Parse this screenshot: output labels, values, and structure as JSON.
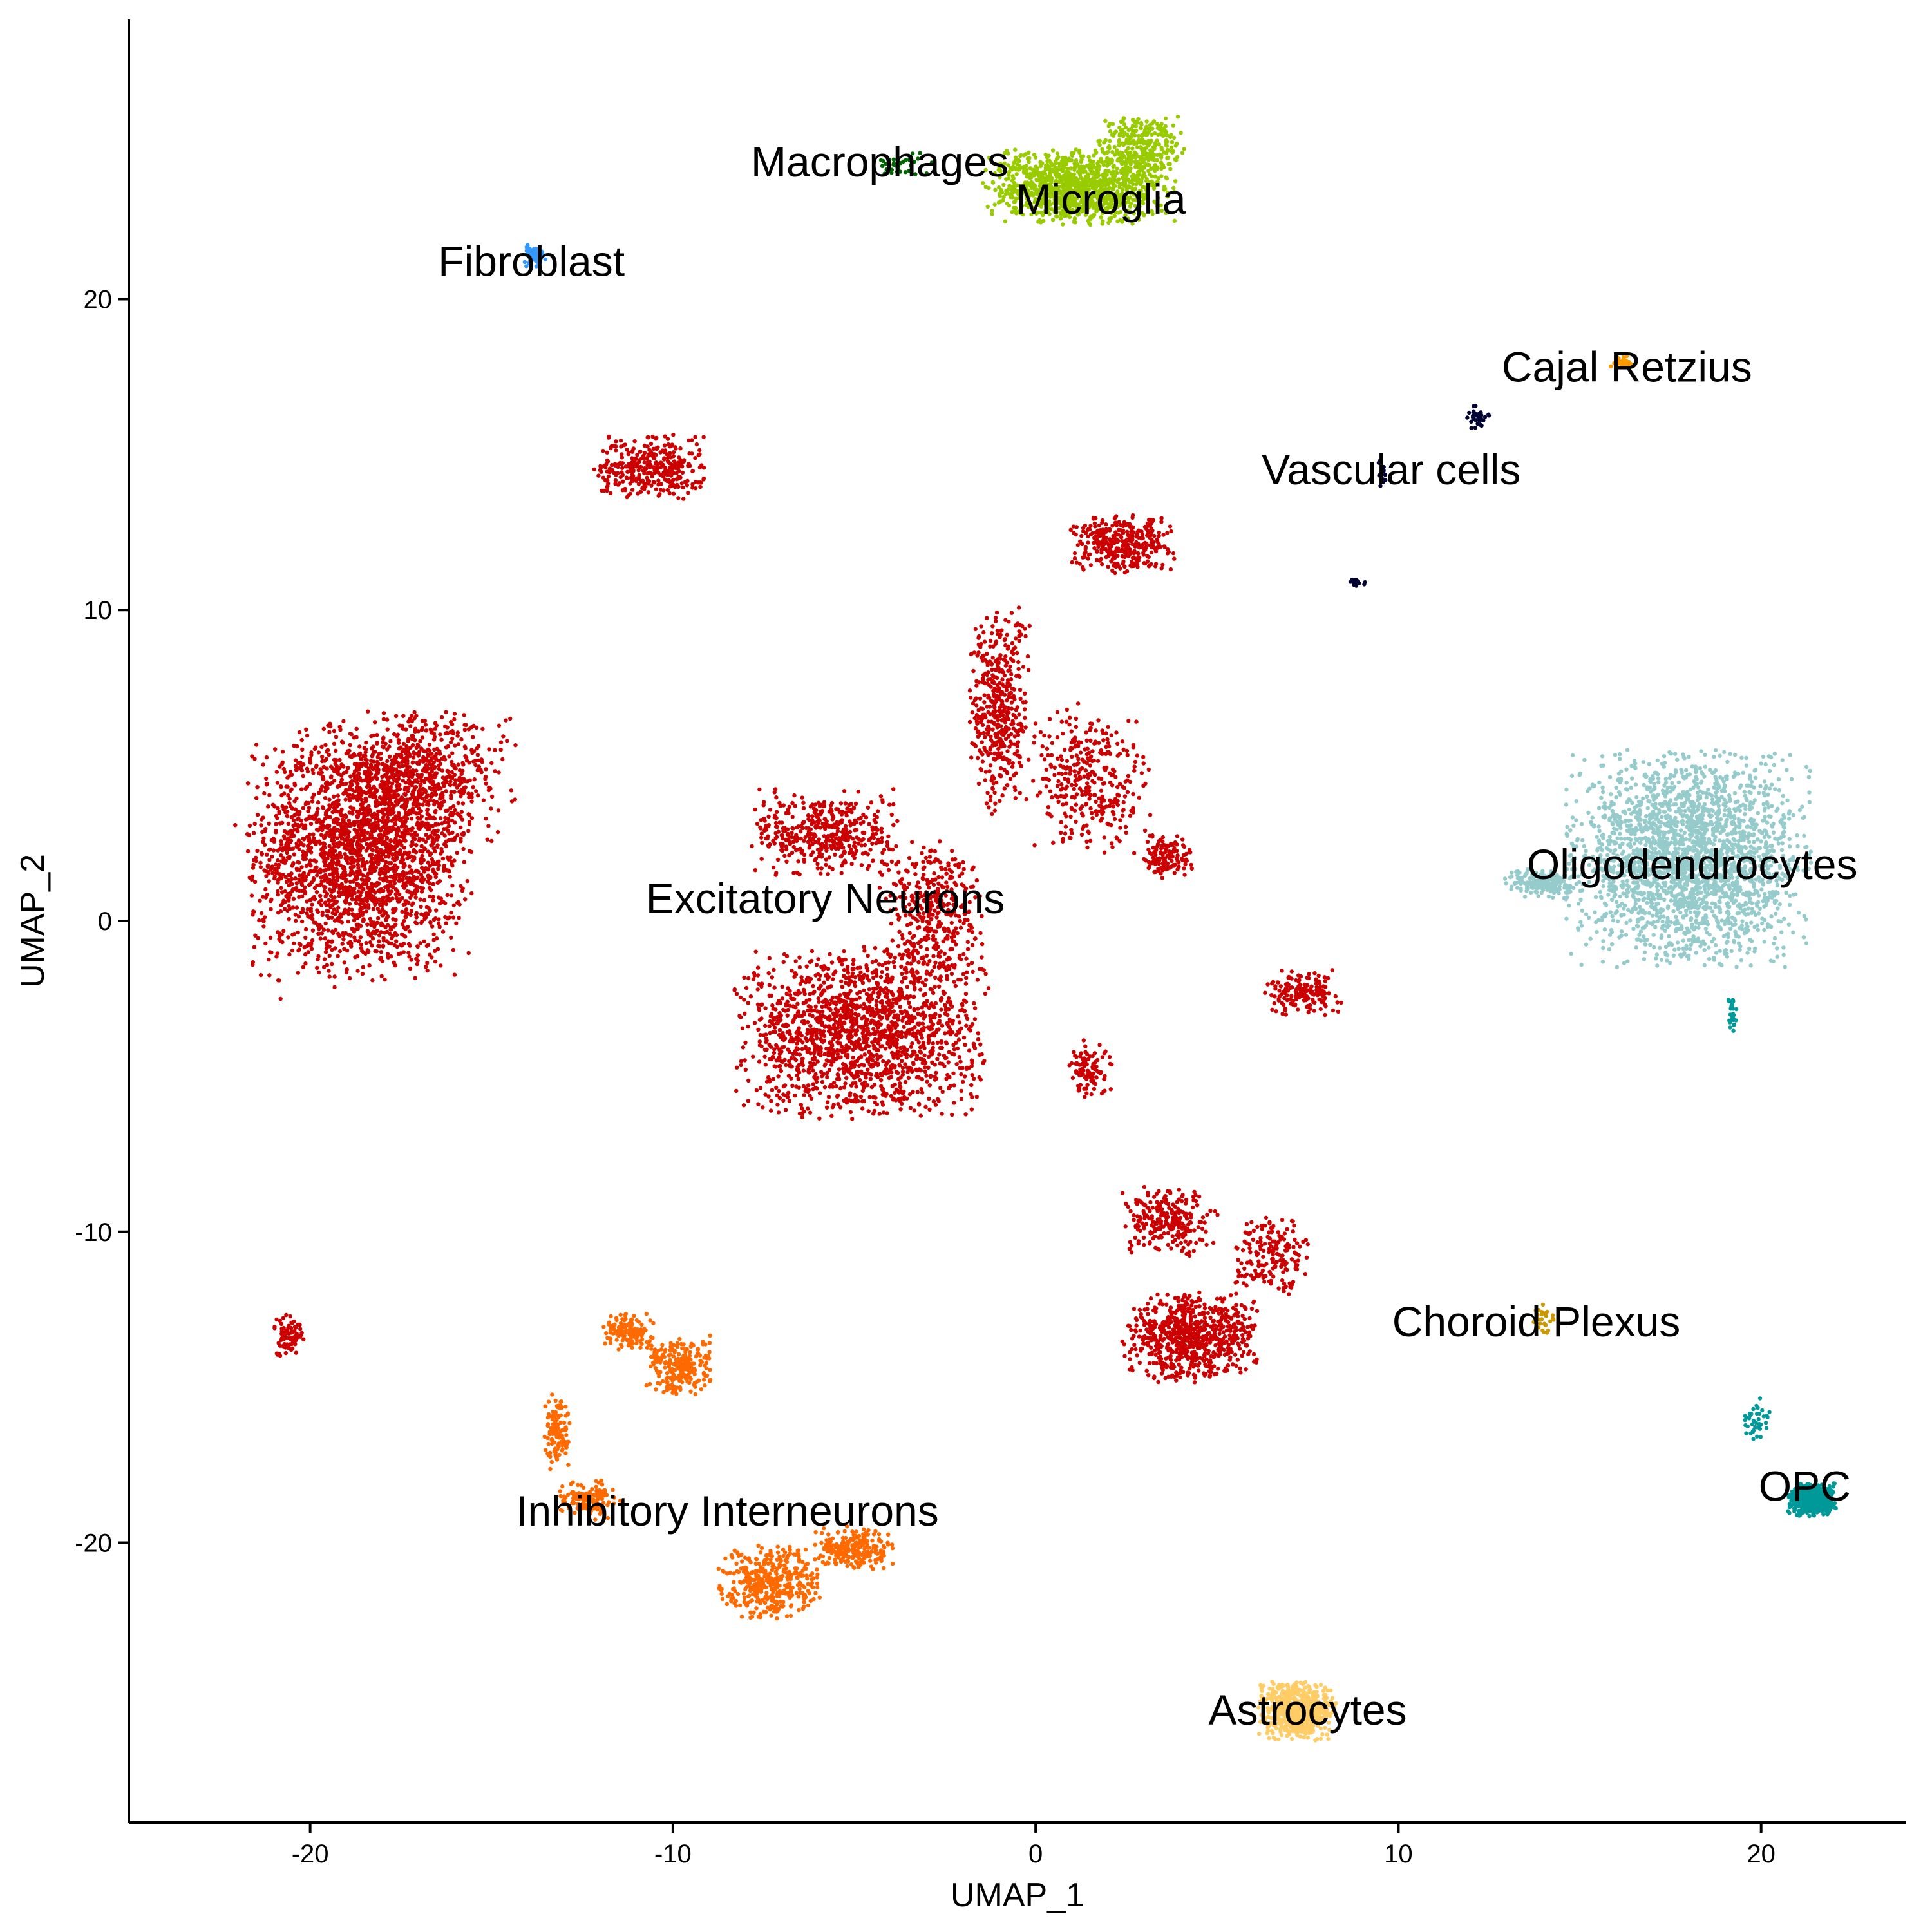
{
  "chart_data": {
    "type": "scatter",
    "title": "",
    "xlabel": "UMAP_1",
    "ylabel": "UMAP_2",
    "xlim": [
      -25,
      24
    ],
    "ylim": [
      -29,
      29
    ],
    "x_ticks": [
      -20,
      -10,
      0,
      10,
      20
    ],
    "y_ticks": [
      -20,
      -10,
      0,
      10,
      20
    ],
    "x_tick_labels": [
      "-20",
      "-10",
      "0",
      "10",
      "20"
    ],
    "y_tick_labels": [
      "-20",
      "-10",
      "0",
      "10",
      "20"
    ],
    "grid": false,
    "legend": "none",
    "clusters": [
      {
        "name": "Excitatory Neurons",
        "color": "#CC0000",
        "label_pos": [
          -5.8,
          0.7
        ],
        "regions": [
          {
            "center": [
              -18.6,
              2.2
            ],
            "spread": [
              2.6,
              3.4
            ],
            "count": 2400
          },
          {
            "center": [
              -17.0,
              4.6
            ],
            "spread": [
              2.2,
              1.8
            ],
            "count": 600
          },
          {
            "center": [
              -4.8,
              -3.6
            ],
            "spread": [
              2.9,
              2.3
            ],
            "count": 1700
          },
          {
            "center": [
              -5.8,
              2.8
            ],
            "spread": [
              1.7,
              1.2
            ],
            "count": 450
          },
          {
            "center": [
              -2.9,
              0.3
            ],
            "spread": [
              1.2,
              2.0
            ],
            "count": 400
          },
          {
            "center": [
              -1.0,
              6.8
            ],
            "spread": [
              0.7,
              2.8
            ],
            "count": 450
          },
          {
            "center": [
              1.5,
              4.5
            ],
            "spread": [
              1.4,
              2.0
            ],
            "count": 350
          },
          {
            "center": [
              2.4,
              12.1
            ],
            "spread": [
              1.2,
              0.8
            ],
            "count": 350
          },
          {
            "center": [
              -10.6,
              14.6
            ],
            "spread": [
              1.3,
              0.9
            ],
            "count": 350
          },
          {
            "center": [
              3.6,
              2.1
            ],
            "spread": [
              0.6,
              0.6
            ],
            "count": 130
          },
          {
            "center": [
              7.4,
              -2.3
            ],
            "spread": [
              0.9,
              0.6
            ],
            "count": 170
          },
          {
            "center": [
              1.5,
              -4.8
            ],
            "spread": [
              0.5,
              0.8
            ],
            "count": 100
          },
          {
            "center": [
              4.3,
              -13.4
            ],
            "spread": [
              1.6,
              1.2
            ],
            "count": 750
          },
          {
            "center": [
              3.7,
              -9.7
            ],
            "spread": [
              1.1,
              0.9
            ],
            "count": 250
          },
          {
            "center": [
              6.5,
              -10.8
            ],
            "spread": [
              0.9,
              1.1
            ],
            "count": 180
          },
          {
            "center": [
              -20.6,
              -13.3
            ],
            "spread": [
              0.4,
              0.6
            ],
            "count": 90
          }
        ]
      },
      {
        "name": "Inhibitory Interneurons",
        "color": "#FF6A00",
        "label_pos": [
          -8.5,
          -19.0
        ],
        "regions": [
          {
            "center": [
              -7.3,
              -21.3
            ],
            "spread": [
              1.2,
              1.0
            ],
            "count": 400
          },
          {
            "center": [
              -5.0,
              -20.2
            ],
            "spread": [
              0.9,
              0.6
            ],
            "count": 250
          },
          {
            "center": [
              -9.8,
              -14.3
            ],
            "spread": [
              0.8,
              0.8
            ],
            "count": 250
          },
          {
            "center": [
              -11.2,
              -13.2
            ],
            "spread": [
              0.6,
              0.5
            ],
            "count": 140
          },
          {
            "center": [
              -13.2,
              -16.4
            ],
            "spread": [
              0.3,
              1.0
            ],
            "count": 120
          },
          {
            "center": [
              -12.3,
              -18.6
            ],
            "spread": [
              0.7,
              0.5
            ],
            "count": 140
          }
        ]
      },
      {
        "name": "Oligodendrocytes",
        "color": "#96CBCC",
        "label_pos": [
          18.1,
          1.8
        ],
        "regions": [
          {
            "center": [
              18.0,
              2.0
            ],
            "spread": [
              2.8,
              2.9
            ],
            "count": 2400
          },
          {
            "center": [
              14.0,
              1.2
            ],
            "spread": [
              0.9,
              0.4
            ],
            "count": 180
          }
        ]
      },
      {
        "name": "Microglia",
        "color": "#99CC00",
        "label_pos": [
          1.8,
          23.2
        ],
        "regions": [
          {
            "center": [
              1.2,
              23.6
            ],
            "spread": [
              2.2,
              1.0
            ],
            "count": 1200
          },
          {
            "center": [
              2.9,
              24.9
            ],
            "spread": [
              1.0,
              0.8
            ],
            "count": 300
          }
        ]
      },
      {
        "name": "Astrocytes",
        "color": "#FFCC66",
        "label_pos": [
          7.5,
          -25.4
        ],
        "regions": [
          {
            "center": [
              7.2,
              -25.4
            ],
            "spread": [
              0.9,
              0.8
            ],
            "count": 600
          }
        ]
      },
      {
        "name": "OPC",
        "color": "#009999",
        "label_pos": [
          21.2,
          -18.2
        ],
        "regions": [
          {
            "center": [
              21.4,
              -18.6
            ],
            "spread": [
              0.55,
              0.45
            ],
            "count": 500
          },
          {
            "center": [
              19.9,
              -16.0
            ],
            "spread": [
              0.3,
              0.6
            ],
            "count": 40
          },
          {
            "center": [
              19.2,
              -3.0
            ],
            "spread": [
              0.1,
              0.5
            ],
            "count": 25
          }
        ]
      },
      {
        "name": "Fibroblast",
        "color": "#3399FF",
        "label_pos": [
          -13.9,
          21.2
        ],
        "regions": [
          {
            "center": [
              -13.8,
              21.4
            ],
            "spread": [
              0.25,
              0.3
            ],
            "count": 70
          }
        ]
      },
      {
        "name": "Macrophages",
        "color": "#006600",
        "label_pos": [
          -4.3,
          24.4
        ],
        "regions": [
          {
            "center": [
              -3.7,
              24.3
            ],
            "spread": [
              0.7,
              0.35
            ],
            "count": 35
          }
        ]
      },
      {
        "name": "Cajal Retzius",
        "color": "#FF9900",
        "label_pos": [
          16.3,
          17.8
        ],
        "regions": [
          {
            "center": [
              16.2,
              18.0
            ],
            "spread": [
              0.35,
              0.2
            ],
            "count": 30
          }
        ]
      },
      {
        "name": "Vascular cells",
        "color": "#000033",
        "label_pos": [
          9.8,
          14.5
        ],
        "regions": [
          {
            "center": [
              12.2,
              16.2
            ],
            "spread": [
              0.25,
              0.3
            ],
            "count": 40
          },
          {
            "center": [
              9.6,
              14.4
            ],
            "spread": [
              0.12,
              0.4
            ],
            "count": 15
          },
          {
            "center": [
              8.8,
              10.9
            ],
            "spread": [
              0.4,
              0.12
            ],
            "count": 15
          }
        ]
      },
      {
        "name": "Choroid Plexus",
        "color": "#CC9900",
        "label_pos": [
          13.8,
          -12.9
        ],
        "regions": [
          {
            "center": [
              14.0,
              -12.8
            ],
            "spread": [
              0.3,
              0.5
            ],
            "count": 25
          }
        ]
      }
    ]
  }
}
